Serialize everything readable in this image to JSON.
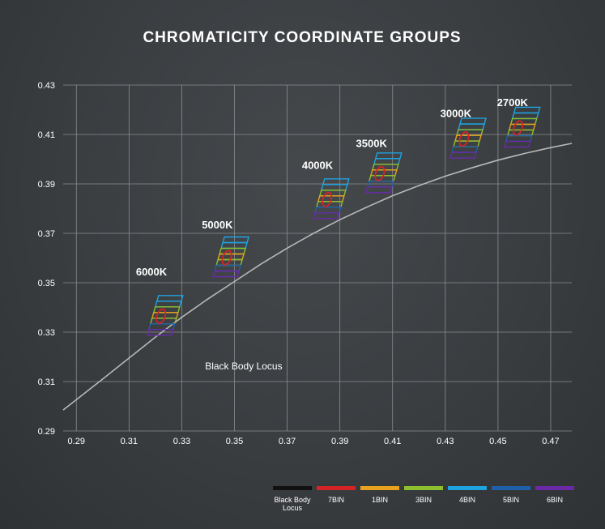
{
  "chart_data": {
    "type": "scatter",
    "title": "CHROMATICITY COORDINATE GROUPS",
    "xlabel": "",
    "ylabel": "",
    "xlim": [
      0.285,
      0.478
    ],
    "ylim": [
      0.29,
      0.43
    ],
    "xticks": [
      0.29,
      0.31,
      0.33,
      0.35,
      0.37,
      0.39,
      0.41,
      0.43,
      0.45,
      0.47
    ],
    "yticks": [
      0.29,
      0.31,
      0.33,
      0.35,
      0.37,
      0.39,
      0.41,
      0.43
    ],
    "xtick_labels": [
      "0.29",
      "0.31",
      "0.33",
      "0.35",
      "0.37",
      "0.39",
      "0.41",
      "0.43",
      "0.45",
      "0.47"
    ],
    "ytick_labels": [
      "0.29",
      "0.31",
      "0.33",
      "0.35",
      "0.37",
      "0.39",
      "0.41",
      "0.43"
    ],
    "grid": true,
    "curve": {
      "name": "Black Body Locus",
      "label": "Black Body Locus",
      "color": "#b8b8b8",
      "x": [
        0.285,
        0.3,
        0.31,
        0.32,
        0.33,
        0.34,
        0.35,
        0.36,
        0.37,
        0.38,
        0.39,
        0.4,
        0.41,
        0.42,
        0.43,
        0.44,
        0.45,
        0.46,
        0.47,
        0.478
      ],
      "y": [
        0.2985,
        0.311,
        0.3195,
        0.328,
        0.336,
        0.3435,
        0.3505,
        0.3575,
        0.364,
        0.37,
        0.3755,
        0.3805,
        0.3852,
        0.3893,
        0.3931,
        0.3965,
        0.3996,
        0.4023,
        0.4047,
        0.4064
      ]
    },
    "cct_groups": [
      {
        "label": "6000K",
        "center": [
          0.3215,
          0.3358
        ],
        "label_at": [
          0.3185,
          0.353
        ]
      },
      {
        "label": "5000K",
        "center": [
          0.3465,
          0.3595
        ],
        "label_at": [
          0.3435,
          0.372
        ]
      },
      {
        "label": "4000K",
        "center": [
          0.3845,
          0.383
        ],
        "label_at": [
          0.3815,
          0.396
        ]
      },
      {
        "label": "3500K",
        "center": [
          0.4045,
          0.3935
        ],
        "label_at": [
          0.402,
          0.405
        ]
      },
      {
        "label": "3000K",
        "center": [
          0.4365,
          0.4075
        ],
        "label_at": [
          0.434,
          0.417
        ]
      },
      {
        "label": "2700K",
        "center": [
          0.457,
          0.412
        ],
        "label_at": [
          0.4555,
          0.4215
        ]
      }
    ],
    "annotations": [
      {
        "text": "Black Body Locus",
        "at": [
          0.3535,
          0.315
        ]
      }
    ],
    "legend": {
      "position": "bottom-right",
      "entries": [
        {
          "name": "Black Body\nLocus",
          "color": "#111111"
        },
        {
          "name": "7BIN",
          "color": "#d42426"
        },
        {
          "name": "1BIN",
          "color": "#e8a21e"
        },
        {
          "name": "3BIN",
          "color": "#8dbf2e"
        },
        {
          "name": "4BIN",
          "color": "#1fa3e0"
        },
        {
          "name": "5BIN",
          "color": "#1f5fa8"
        },
        {
          "name": "6BIN",
          "color": "#6a2aa8"
        }
      ]
    }
  }
}
